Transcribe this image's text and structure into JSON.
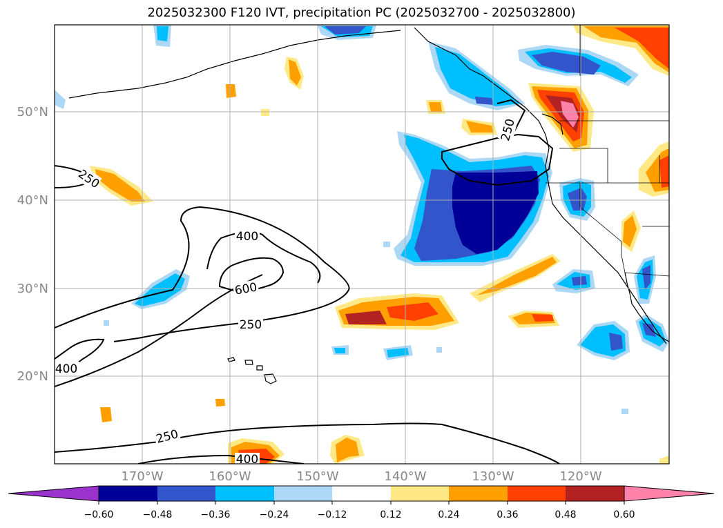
{
  "title": "2025032300 F120 IVT, precipitation PC (2025032700 - 2025032800)",
  "map": {
    "lat_labels": [
      "50°N",
      "40°N",
      "30°N",
      "20°N"
    ],
    "lon_labels": [
      "170°W",
      "160°W",
      "150°W",
      "140°W",
      "130°W",
      "120°W"
    ],
    "ivt_contour_labels": [
      "250",
      "250",
      "400",
      "600",
      "250",
      "400",
      "250",
      "400"
    ],
    "ivt_contour_levels": [
      250,
      400,
      600
    ],
    "grid": true
  },
  "colorbar": {
    "ticks": [
      "−0.60",
      "−0.48",
      "−0.36",
      "−0.24",
      "−0.12",
      "0.12",
      "0.24",
      "0.36",
      "0.48",
      "0.60"
    ],
    "colors": [
      "#9933cc",
      "#000099",
      "#3355cc",
      "#00bfff",
      "#add8f5",
      "#ffffff",
      "#ffe987",
      "#ff9f00",
      "#ff4000",
      "#b22222",
      "#ff82ab"
    ],
    "extend": "both"
  }
}
